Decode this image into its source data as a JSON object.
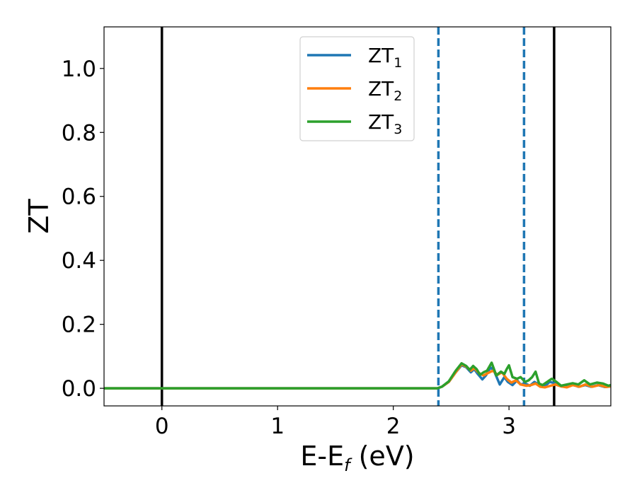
{
  "chart_data": {
    "type": "line",
    "xlabel": {
      "main": "E-E",
      "sub": "f",
      "unit": " (eV)"
    },
    "ylabel": "ZT",
    "xlim": [
      -0.5,
      3.88
    ],
    "ylim": [
      -0.055,
      1.13
    ],
    "xticks": [
      0,
      1,
      2,
      3
    ],
    "xtick_labels": [
      "0",
      "1",
      "2",
      "3"
    ],
    "yticks": [
      0.0,
      0.2,
      0.4,
      0.6,
      0.8,
      1.0
    ],
    "ytick_labels": [
      "0.0",
      "0.2",
      "0.4",
      "0.6",
      "0.8",
      "1.0"
    ],
    "grid": false,
    "legend_position": "top-center",
    "vlines": [
      {
        "x": 0.0,
        "style": "solid",
        "color": "#000000"
      },
      {
        "x": 3.39,
        "style": "solid",
        "color": "#000000"
      },
      {
        "x": 2.39,
        "style": "dashed",
        "color": "#1f77b4"
      },
      {
        "x": 3.13,
        "style": "dashed",
        "color": "#1f77b4"
      }
    ],
    "series": [
      {
        "name": "ZT",
        "sub": "1",
        "color": "#1f77b4",
        "points": [
          [
            -0.5,
            0
          ],
          [
            2.38,
            0
          ],
          [
            2.42,
            0.005
          ],
          [
            2.48,
            0.02
          ],
          [
            2.54,
            0.05
          ],
          [
            2.59,
            0.072
          ],
          [
            2.63,
            0.066
          ],
          [
            2.67,
            0.05
          ],
          [
            2.7,
            0.06
          ],
          [
            2.73,
            0.045
          ],
          [
            2.77,
            0.028
          ],
          [
            2.8,
            0.04
          ],
          [
            2.84,
            0.065
          ],
          [
            2.87,
            0.055
          ],
          [
            2.92,
            0.012
          ],
          [
            2.96,
            0.035
          ],
          [
            2.99,
            0.02
          ],
          [
            3.03,
            0.01
          ],
          [
            3.07,
            0.025
          ],
          [
            3.1,
            0.012
          ],
          [
            3.14,
            0.015
          ],
          [
            3.18,
            0.008
          ],
          [
            3.22,
            0.02
          ],
          [
            3.27,
            0.01
          ],
          [
            3.31,
            0.006
          ],
          [
            3.35,
            0.02
          ],
          [
            3.4,
            0.016
          ],
          [
            3.45,
            0.006
          ],
          [
            3.5,
            0.004
          ],
          [
            3.55,
            0.012
          ],
          [
            3.6,
            0.005
          ],
          [
            3.66,
            0.01
          ],
          [
            3.71,
            0.005
          ],
          [
            3.77,
            0.01
          ],
          [
            3.83,
            0.004
          ],
          [
            3.88,
            0.006
          ]
        ]
      },
      {
        "name": "ZT",
        "sub": "2",
        "color": "#ff7f0e",
        "points": [
          [
            -0.5,
            0
          ],
          [
            2.38,
            0
          ],
          [
            2.42,
            0.005
          ],
          [
            2.48,
            0.02
          ],
          [
            2.54,
            0.05
          ],
          [
            2.59,
            0.075
          ],
          [
            2.63,
            0.068
          ],
          [
            2.67,
            0.055
          ],
          [
            2.7,
            0.063
          ],
          [
            2.74,
            0.048
          ],
          [
            2.78,
            0.04
          ],
          [
            2.82,
            0.048
          ],
          [
            2.86,
            0.055
          ],
          [
            2.9,
            0.042
          ],
          [
            2.94,
            0.05
          ],
          [
            2.98,
            0.03
          ],
          [
            3.02,
            0.018
          ],
          [
            3.06,
            0.025
          ],
          [
            3.1,
            0.012
          ],
          [
            3.15,
            0.008
          ],
          [
            3.19,
            0.01
          ],
          [
            3.23,
            0.015
          ],
          [
            3.27,
            0.005
          ],
          [
            3.31,
            0.003
          ],
          [
            3.36,
            0.008
          ],
          [
            3.4,
            0.012
          ],
          [
            3.45,
            0.006
          ],
          [
            3.5,
            0.003
          ],
          [
            3.55,
            0.01
          ],
          [
            3.61,
            0.005
          ],
          [
            3.66,
            0.012
          ],
          [
            3.72,
            0.005
          ],
          [
            3.78,
            0.01
          ],
          [
            3.84,
            0.004
          ],
          [
            3.88,
            0.006
          ]
        ]
      },
      {
        "name": "ZT",
        "sub": "3",
        "color": "#2ca02c",
        "points": [
          [
            -0.5,
            0
          ],
          [
            2.38,
            0
          ],
          [
            2.42,
            0.005
          ],
          [
            2.48,
            0.022
          ],
          [
            2.54,
            0.055
          ],
          [
            2.59,
            0.078
          ],
          [
            2.63,
            0.07
          ],
          [
            2.66,
            0.058
          ],
          [
            2.69,
            0.07
          ],
          [
            2.72,
            0.06
          ],
          [
            2.75,
            0.042
          ],
          [
            2.78,
            0.05
          ],
          [
            2.81,
            0.055
          ],
          [
            2.85,
            0.08
          ],
          [
            2.89,
            0.04
          ],
          [
            2.93,
            0.052
          ],
          [
            2.96,
            0.045
          ],
          [
            2.98,
            0.06
          ],
          [
            3.0,
            0.072
          ],
          [
            3.03,
            0.035
          ],
          [
            3.07,
            0.03
          ],
          [
            3.1,
            0.035
          ],
          [
            3.14,
            0.02
          ],
          [
            3.17,
            0.025
          ],
          [
            3.2,
            0.035
          ],
          [
            3.23,
            0.052
          ],
          [
            3.26,
            0.015
          ],
          [
            3.29,
            0.01
          ],
          [
            3.33,
            0.02
          ],
          [
            3.37,
            0.03
          ],
          [
            3.41,
            0.02
          ],
          [
            3.45,
            0.008
          ],
          [
            3.5,
            0.012
          ],
          [
            3.55,
            0.016
          ],
          [
            3.6,
            0.012
          ],
          [
            3.65,
            0.025
          ],
          [
            3.7,
            0.012
          ],
          [
            3.76,
            0.018
          ],
          [
            3.81,
            0.015
          ],
          [
            3.86,
            0.008
          ],
          [
            3.88,
            0.01
          ]
        ]
      }
    ]
  }
}
